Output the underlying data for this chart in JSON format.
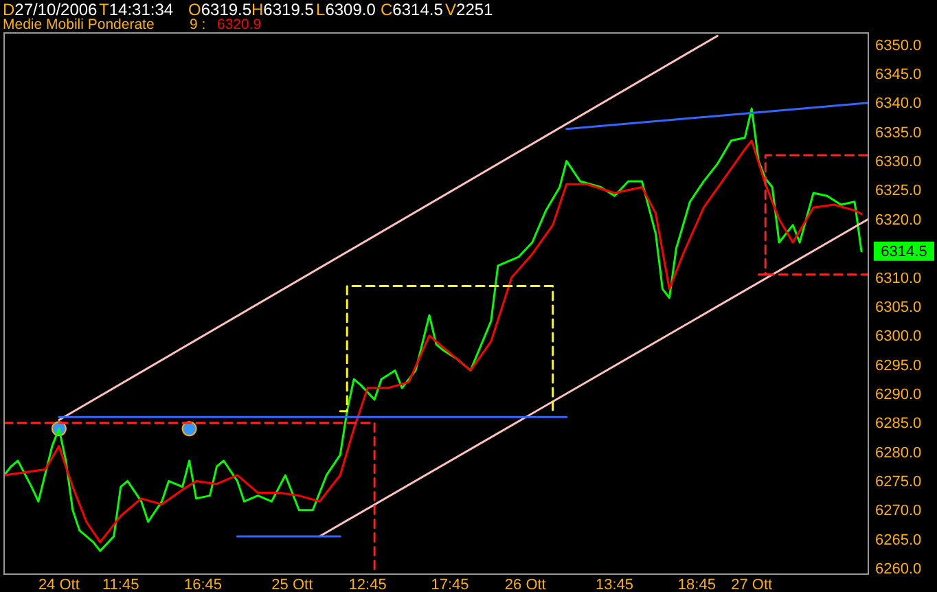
{
  "chart_data": {
    "type": "line",
    "annotations": [
      "D27/10/2006",
      "T14:31:34",
      "O6319.5",
      "H6319.5",
      "L6309.0",
      "C6314.5",
      "V2251",
      "6320.9"
    ],
    "legend_title": "Medie Mobili Ponderate",
    "legend": "top left",
    "grid": false,
    "categories": [
      null,
      null,
      null,
      null,
      null,
      null,
      null,
      null,
      "24 Ott",
      null,
      null,
      null,
      null,
      null,
      null,
      null,
      null,
      "11:45",
      null,
      null,
      null,
      null,
      null,
      null,
      null,
      null,
      null,
      null,
      null,
      "16:45",
      null,
      null,
      null,
      null,
      null,
      null,
      null,
      null,
      null,
      null,
      null,
      null,
      "25 Ott",
      null,
      null,
      null,
      null,
      null,
      null,
      null,
      null,
      null,
      null,
      "12:45",
      null,
      null,
      null,
      null,
      null,
      null,
      null,
      null,
      null,
      null,
      null,
      "17:45",
      null,
      null,
      null,
      null,
      null,
      null,
      null,
      null,
      null,
      null,
      "26 Ott",
      null,
      null,
      null,
      null,
      null,
      null,
      null,
      null,
      null,
      null,
      null,
      null,
      "13:45",
      null,
      null,
      null,
      null,
      null,
      null,
      null,
      null,
      null,
      null,
      null,
      "18:45",
      null,
      null,
      null,
      null,
      null,
      null,
      null,
      "27 Ott",
      null,
      null,
      null,
      null,
      null,
      null,
      null,
      null,
      null,
      null,
      null,
      null,
      null,
      null,
      null,
      null,
      null
    ],
    "ylim": [
      6259,
      6352
    ],
    "yticks": [
      {
        "value": 6260,
        "label": "6260.0"
      },
      {
        "value": 6265,
        "label": "6265.0"
      },
      {
        "value": 6270,
        "label": "6270.0"
      },
      {
        "value": 6275,
        "label": "6275.0"
      },
      {
        "value": 6280,
        "label": "6280.0"
      },
      {
        "value": 6285,
        "label": "6285.0"
      },
      {
        "value": 6290,
        "label": "6290.0"
      },
      {
        "value": 6295,
        "label": "6295.0"
      },
      {
        "value": 6300,
        "label": "6300.0"
      },
      {
        "value": 6305,
        "label": "6305.0"
      },
      {
        "value": 6310,
        "label": "6310.0"
      },
      {
        "value": 6320,
        "label": "6320.0"
      },
      {
        "value": 6325,
        "label": "6325.0"
      },
      {
        "value": 6330,
        "label": "6330.0"
      },
      {
        "value": 6335,
        "label": "6335.0"
      },
      {
        "value": 6340,
        "label": "6340.0"
      },
      {
        "value": 6345,
        "label": "6345.0"
      },
      {
        "value": 6350,
        "label": "6350.0"
      }
    ],
    "series": [
      {
        "color": "#00ff00",
        "values": [
          6276,
          6277.5,
          6278.5,
          null,
          6274,
          6271.5,
          null,
          6281,
          6284,
          6278.5,
          6270,
          6266.5,
          null,
          6264.5,
          6263,
          null,
          6265.5,
          6274,
          6275,
          null,
          6271.5,
          6268,
          null,
          6271.5,
          6275,
          null,
          6274,
          6278.5,
          6272,
          null,
          6272.5,
          6277.5,
          6278.5,
          null,
          6275,
          6271.5,
          null,
          6272.5,
          null,
          6271.5,
          null,
          6276,
          null,
          6270,
          null,
          6270,
          null,
          6276,
          null,
          6279.5,
          6287,
          6292.5,
          6291.5,
          null,
          6289,
          6292.5,
          null,
          6294,
          6291,
          null,
          6294,
          null,
          6303.5,
          6298.5,
          6297.5,
          null,
          6296,
          null,
          6294,
          null,
          null,
          6302.5,
          6312,
          null,
          null,
          6313.5,
          null,
          6316,
          null,
          6321.5,
          null,
          6325.5,
          6330,
          null,
          6326.5,
          null,
          null,
          6325.5,
          null,
          6324,
          null,
          6326.5,
          null,
          6326.5,
          null,
          6317.5,
          6308,
          6306.5,
          6315,
          null,
          6323,
          null,
          6326.5,
          null,
          6329.5,
          null,
          6333.5,
          null,
          6334,
          6339,
          6330,
          6327,
          6325.5,
          6316,
          null,
          6319,
          6316,
          null,
          6324.5,
          null,
          6324,
          null,
          6322.5,
          null,
          6323,
          6314.5,
          null
        ],
        "value_labels": [
          null,
          null,
          null,
          null,
          null,
          null,
          null,
          null,
          null,
          null,
          null,
          null,
          null,
          null,
          null,
          null,
          null,
          null,
          null,
          null,
          null,
          null,
          null,
          null,
          null,
          null,
          null,
          null,
          null,
          null,
          null,
          null,
          null,
          null,
          null,
          null,
          null,
          null,
          null,
          null,
          null,
          null,
          null,
          null,
          null,
          null,
          null,
          null,
          null,
          null,
          null,
          null,
          null,
          null,
          null,
          null,
          null,
          null,
          null,
          null,
          null,
          null,
          null,
          null,
          null,
          null,
          null,
          null,
          null,
          null,
          null,
          null,
          null,
          null,
          null,
          null,
          null,
          null,
          null,
          null,
          null,
          null,
          null,
          null,
          null,
          null,
          null,
          null,
          null,
          null,
          null,
          null,
          null,
          null,
          null,
          null,
          null,
          null,
          null,
          null,
          null,
          null,
          null,
          null,
          null,
          null,
          null,
          null,
          null,
          null,
          null,
          null,
          null,
          null,
          null,
          null,
          null,
          null,
          null,
          null,
          null,
          null,
          null,
          null,
          null,
          "6314.5",
          null
        ]
      },
      {
        "name": "9 :",
        "color": "#ff0000",
        "values": [
          6276,
          null,
          null,
          6276.5,
          null,
          null,
          6277,
          null,
          6281,
          null,
          6274,
          null,
          6268,
          null,
          6264.5,
          null,
          null,
          6269,
          null,
          null,
          6272,
          null,
          null,
          6271,
          null,
          null,
          6273.5,
          null,
          6275,
          null,
          null,
          6274.5,
          null,
          null,
          6276,
          null,
          null,
          6273,
          null,
          null,
          6273,
          null,
          null,
          6272.5,
          null,
          null,
          6271.5,
          null,
          null,
          6276,
          null,
          6284,
          null,
          6291,
          null,
          null,
          6291,
          null,
          null,
          6292,
          null,
          null,
          6300,
          null,
          6298,
          null,
          null,
          null,
          6294,
          null,
          null,
          6299,
          null,
          null,
          6310,
          null,
          null,
          6314,
          null,
          null,
          6319,
          null,
          6326,
          null,
          null,
          6326,
          null,
          null,
          null,
          6324.5,
          null,
          null,
          null,
          6325.5,
          null,
          6321,
          null,
          6308,
          null,
          6314,
          null,
          null,
          6322,
          null,
          null,
          6327,
          null,
          null,
          6332,
          6333.5,
          null,
          6326,
          null,
          6320,
          null,
          6316,
          null,
          null,
          6322,
          null,
          null,
          6322.5,
          null,
          null,
          6321.5,
          6320.9,
          null
        ]
      },
      {
        "type": "line",
        "color": "#ffc0c0",
        "values": [
          null,
          null,
          null,
          null,
          null,
          null,
          null,
          null,
          6285.5,
          null,
          null,
          null,
          null,
          null,
          null,
          null,
          null,
          null,
          null,
          null,
          null,
          null,
          null,
          null,
          null,
          null,
          null,
          null,
          null,
          null,
          null,
          null,
          null,
          null,
          null,
          null,
          null,
          null,
          null,
          null,
          null,
          null,
          null,
          null,
          null,
          null,
          null,
          null,
          null,
          null,
          null,
          null,
          null,
          null,
          null,
          null,
          null,
          null,
          null,
          null,
          null,
          null,
          null,
          null,
          null,
          null,
          null,
          null,
          null,
          null,
          null,
          null,
          null,
          null,
          null,
          null,
          null,
          null,
          null,
          null,
          null,
          null,
          null,
          null,
          null,
          null,
          null,
          null,
          null,
          null,
          null,
          null,
          null,
          null,
          null,
          null,
          null,
          null,
          null,
          null,
          null,
          null,
          null,
          null,
          6351.5,
          null,
          null,
          null,
          null,
          null,
          null,
          null,
          null,
          null,
          null,
          null,
          null,
          null,
          null,
          null,
          null,
          null,
          null,
          null,
          null,
          null,
          null
        ]
      },
      {
        "type": "line",
        "color": "#ffc0c0",
        "values": [
          null,
          null,
          null,
          null,
          null,
          null,
          null,
          null,
          null,
          null,
          null,
          null,
          null,
          null,
          null,
          null,
          null,
          null,
          null,
          null,
          null,
          null,
          null,
          null,
          null,
          null,
          null,
          null,
          null,
          null,
          null,
          null,
          null,
          null,
          null,
          null,
          null,
          null,
          null,
          null,
          null,
          null,
          null,
          null,
          null,
          null,
          6265.5,
          null,
          null,
          null,
          null,
          null,
          null,
          null,
          null,
          null,
          null,
          null,
          null,
          null,
          null,
          null,
          null,
          null,
          null,
          null,
          null,
          null,
          null,
          null,
          null,
          null,
          null,
          null,
          null,
          null,
          null,
          null,
          null,
          null,
          null,
          null,
          null,
          null,
          null,
          null,
          null,
          null,
          null,
          null,
          null,
          null,
          null,
          null,
          null,
          null,
          null,
          null,
          null,
          null,
          null,
          null,
          null,
          null,
          null,
          null,
          null,
          null,
          null,
          null,
          null,
          null,
          null,
          null,
          null,
          null,
          null,
          null,
          null,
          null,
          null,
          null,
          null,
          null,
          null,
          null,
          6320
        ]
      },
      {
        "type": "line",
        "color": "#3366ff",
        "values": [
          null,
          null,
          null,
          null,
          null,
          null,
          null,
          null,
          6286,
          null,
          null,
          null,
          null,
          null,
          null,
          null,
          null,
          null,
          null,
          null,
          null,
          null,
          null,
          null,
          null,
          null,
          null,
          null,
          null,
          null,
          null,
          null,
          null,
          null,
          null,
          null,
          null,
          null,
          null,
          null,
          null,
          null,
          null,
          null,
          null,
          null,
          null,
          null,
          null,
          null,
          null,
          null,
          null,
          null,
          null,
          null,
          null,
          null,
          null,
          null,
          null,
          null,
          null,
          null,
          null,
          null,
          null,
          null,
          null,
          null,
          null,
          null,
          null,
          null,
          null,
          null,
          null,
          null,
          null,
          null,
          null,
          null,
          6286,
          null,
          null,
          null,
          null,
          null,
          null,
          null,
          null,
          null,
          null,
          null,
          null,
          null,
          null,
          null,
          null,
          null,
          null,
          null,
          null,
          null,
          null,
          null,
          null,
          null,
          null,
          null,
          null,
          null,
          null,
          null,
          null,
          null,
          null,
          null,
          null,
          null,
          null,
          null,
          null,
          null,
          null,
          null,
          null
        ]
      },
      {
        "type": "line",
        "color": "#3366ff",
        "values": [
          null,
          null,
          null,
          null,
          null,
          null,
          null,
          null,
          null,
          null,
          null,
          null,
          null,
          null,
          null,
          null,
          null,
          null,
          null,
          null,
          null,
          null,
          null,
          null,
          null,
          null,
          null,
          null,
          null,
          null,
          null,
          null,
          null,
          null,
          6265.5,
          null,
          null,
          null,
          null,
          null,
          null,
          null,
          null,
          null,
          null,
          null,
          null,
          null,
          null,
          6265.5,
          null,
          null,
          null,
          null,
          null,
          null,
          null,
          null,
          null,
          null,
          null,
          null,
          null,
          null,
          null,
          null,
          null,
          null,
          null,
          null,
          null,
          null,
          null,
          null,
          null,
          null,
          null,
          null,
          null,
          null,
          null,
          null,
          null,
          null,
          null,
          null,
          null,
          null,
          null,
          null,
          null,
          null,
          null,
          null,
          null,
          null,
          null,
          null,
          null,
          null,
          null,
          null,
          null,
          null,
          null,
          null,
          null,
          null,
          null,
          null,
          null,
          null,
          null,
          null,
          null,
          null,
          null,
          null,
          null,
          null,
          null,
          null,
          null,
          null,
          null,
          null,
          null
        ]
      },
      {
        "type": "line",
        "color": "#3366ff",
        "values": [
          null,
          null,
          null,
          null,
          null,
          null,
          null,
          null,
          null,
          null,
          null,
          null,
          null,
          null,
          null,
          null,
          null,
          null,
          null,
          null,
          null,
          null,
          null,
          null,
          null,
          null,
          null,
          null,
          null,
          null,
          null,
          null,
          null,
          null,
          null,
          null,
          null,
          null,
          null,
          null,
          null,
          null,
          null,
          null,
          null,
          null,
          null,
          null,
          null,
          null,
          null,
          null,
          null,
          null,
          null,
          null,
          null,
          null,
          null,
          null,
          null,
          null,
          null,
          null,
          null,
          null,
          null,
          null,
          null,
          null,
          null,
          null,
          null,
          null,
          null,
          null,
          null,
          null,
          null,
          null,
          null,
          null,
          6335.5,
          null,
          null,
          null,
          null,
          null,
          null,
          null,
          null,
          null,
          null,
          null,
          null,
          null,
          null,
          null,
          null,
          null,
          null,
          null,
          null,
          null,
          null,
          null,
          null,
          null,
          null,
          null,
          null,
          null,
          null,
          null,
          null,
          null,
          null,
          null,
          null,
          null,
          null,
          null,
          null,
          null,
          null,
          null,
          6340
        ]
      },
      {
        "type": "step",
        "color": "#ff2020",
        "line_style": "dashed",
        "values": [
          6285,
          null,
          null,
          null,
          null,
          null,
          null,
          null,
          null,
          null,
          null,
          null,
          null,
          null,
          null,
          null,
          null,
          null,
          null,
          null,
          null,
          null,
          null,
          null,
          null,
          null,
          null,
          null,
          null,
          null,
          null,
          null,
          null,
          null,
          null,
          null,
          null,
          null,
          null,
          null,
          null,
          null,
          null,
          null,
          null,
          null,
          null,
          null,
          null,
          null,
          null,
          null,
          null,
          6285,
          6259,
          null,
          null,
          null,
          null,
          null,
          null,
          null,
          null,
          null,
          null,
          null,
          null,
          null,
          null,
          null,
          null,
          null,
          null,
          null,
          null,
          null,
          null,
          null,
          null,
          null,
          null,
          null,
          null,
          null,
          null,
          null,
          null,
          null,
          null,
          null,
          null,
          null,
          null,
          null,
          null,
          null,
          null,
          null,
          null,
          null,
          null,
          null,
          null,
          null,
          null,
          null,
          null,
          null,
          null,
          null,
          null,
          null,
          null,
          null,
          null,
          null,
          null,
          null,
          null,
          null,
          null,
          null,
          null,
          null,
          null,
          null,
          null
        ]
      },
      {
        "type": "step",
        "color": "#ffff00",
        "line_style": "dashed",
        "values": [
          null,
          null,
          null,
          null,
          null,
          null,
          null,
          null,
          null,
          null,
          null,
          null,
          null,
          null,
          null,
          null,
          null,
          null,
          null,
          null,
          null,
          null,
          null,
          null,
          null,
          null,
          null,
          null,
          null,
          null,
          null,
          null,
          null,
          null,
          null,
          null,
          null,
          null,
          null,
          null,
          null,
          null,
          null,
          null,
          null,
          null,
          null,
          null,
          null,
          6287,
          6308.5,
          null,
          null,
          null,
          null,
          null,
          null,
          null,
          null,
          null,
          null,
          null,
          null,
          null,
          null,
          null,
          null,
          null,
          null,
          null,
          null,
          null,
          null,
          null,
          null,
          null,
          null,
          null,
          null,
          6308.5,
          6287,
          null,
          null,
          null,
          null,
          null,
          null,
          null,
          null,
          null,
          null,
          null,
          null,
          null,
          null,
          null,
          null,
          null,
          null,
          null,
          null,
          null,
          null,
          null,
          null,
          null,
          null,
          null,
          null,
          null,
          null,
          null,
          null,
          null,
          null,
          null,
          null,
          null,
          null,
          null,
          null,
          null,
          null,
          null,
          null,
          null,
          null
        ]
      },
      {
        "type": "step",
        "color": "#ff2020",
        "line_style": "dashed",
        "values": [
          null,
          null,
          null,
          null,
          null,
          null,
          null,
          null,
          null,
          null,
          null,
          null,
          null,
          null,
          null,
          null,
          null,
          null,
          null,
          null,
          null,
          null,
          null,
          null,
          null,
          null,
          null,
          null,
          null,
          null,
          null,
          null,
          null,
          null,
          null,
          null,
          null,
          null,
          null,
          null,
          null,
          null,
          null,
          null,
          null,
          null,
          null,
          null,
          null,
          null,
          null,
          null,
          null,
          null,
          null,
          null,
          null,
          null,
          null,
          null,
          null,
          null,
          null,
          null,
          null,
          null,
          null,
          null,
          null,
          null,
          null,
          null,
          null,
          null,
          null,
          null,
          null,
          null,
          null,
          null,
          null,
          null,
          null,
          null,
          null,
          null,
          null,
          null,
          null,
          null,
          null,
          null,
          null,
          null,
          null,
          null,
          null,
          null,
          null,
          null,
          null,
          null,
          null,
          null,
          null,
          null,
          null,
          null,
          null,
          null,
          6310.5,
          6331,
          null,
          null,
          null,
          null,
          null,
          null,
          null,
          null,
          null,
          null,
          null,
          null,
          null,
          null,
          6331
        ]
      },
      {
        "type": "line",
        "color": "#ff2020",
        "line_style": "dashed",
        "values": [
          null,
          null,
          null,
          null,
          null,
          null,
          null,
          null,
          null,
          null,
          null,
          null,
          null,
          null,
          null,
          null,
          null,
          null,
          null,
          null,
          null,
          null,
          null,
          null,
          null,
          null,
          null,
          null,
          null,
          null,
          null,
          null,
          null,
          null,
          null,
          null,
          null,
          null,
          null,
          null,
          null,
          null,
          null,
          null,
          null,
          null,
          null,
          null,
          null,
          null,
          null,
          null,
          null,
          null,
          null,
          null,
          null,
          null,
          null,
          null,
          null,
          null,
          null,
          null,
          null,
          null,
          null,
          null,
          null,
          null,
          null,
          null,
          null,
          null,
          null,
          null,
          null,
          null,
          null,
          null,
          null,
          null,
          null,
          null,
          null,
          null,
          null,
          null,
          null,
          null,
          null,
          null,
          null,
          null,
          null,
          null,
          null,
          null,
          null,
          null,
          null,
          null,
          null,
          null,
          null,
          null,
          null,
          null,
          null,
          null,
          null,
          6310.5,
          null,
          null,
          null,
          null,
          null,
          null,
          null,
          null,
          null,
          null,
          null,
          null,
          null,
          null,
          6310.5
        ]
      },
      {
        "type": "scatter",
        "color": "#3399ff",
        "marker": "circle",
        "values": [
          null,
          null,
          null,
          null,
          null,
          null,
          null,
          null,
          6284,
          null,
          null,
          null,
          null,
          null,
          null,
          null,
          null,
          null,
          null,
          null,
          null,
          null,
          null,
          null,
          null,
          null,
          null,
          6284,
          null,
          null,
          null,
          null,
          null,
          null,
          null,
          null,
          null,
          null,
          null,
          null,
          null,
          null,
          null,
          null,
          null,
          null,
          null,
          null,
          null,
          null,
          null,
          null,
          null,
          null,
          null,
          null,
          null,
          null,
          null,
          null,
          null,
          null,
          null,
          null,
          null,
          null,
          null,
          null,
          null,
          null,
          null,
          null,
          null,
          null,
          null,
          null,
          null,
          null,
          null,
          null,
          null,
          null,
          null,
          null,
          null,
          null,
          null,
          null,
          null,
          null,
          null,
          null,
          null,
          null,
          null,
          null,
          null,
          null,
          null,
          null,
          null,
          null,
          null,
          null,
          null,
          null,
          null,
          null,
          null,
          null,
          null,
          null,
          null,
          null,
          null,
          null,
          null,
          null,
          null,
          null,
          null,
          null,
          null,
          null,
          null,
          null,
          null
        ]
      }
    ]
  }
}
